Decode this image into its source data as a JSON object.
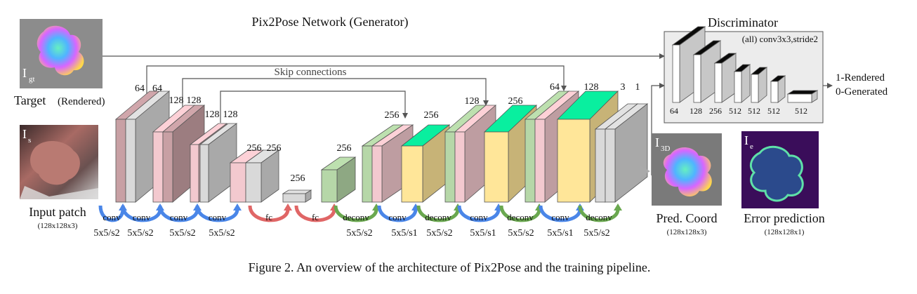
{
  "titles": {
    "generator": "Pix2Pose Network (Generator)",
    "discriminator": "Discriminator",
    "skip": "Skip connections",
    "disc_note": "(all) conv3x3,stride2"
  },
  "images": {
    "target_sym": "I",
    "target_sub": "gt",
    "target_caption": "Target",
    "target_caption_note": "(Rendered)",
    "input_sym": "I",
    "input_sub": "s",
    "input_caption": "Input patch",
    "input_size": "(128x128x3)",
    "pred_sym": "I",
    "pred_sub": "3D",
    "pred_caption": "Pred. Coord",
    "pred_size": "(128x128x3)",
    "err_sym": "I",
    "err_sub": "e",
    "err_caption": "Error prediction",
    "err_size": "(128x128x1)"
  },
  "disc_output": {
    "line1": "1-Rendered",
    "line2": "0-Generated"
  },
  "disc_channels": [
    "64",
    "128",
    "256",
    "512",
    "512",
    "512",
    "512"
  ],
  "block_labels": [
    "64",
    "64",
    "128",
    "128",
    "128",
    "128",
    "256",
    "256",
    "256",
    "256",
    "256",
    "256",
    "128",
    "256",
    "64",
    "128",
    "3",
    "1"
  ],
  "ops": [
    "conv",
    "conv",
    "conv",
    "conv",
    "fc",
    "fc",
    "deconv",
    "conv",
    "deconv",
    "conv",
    "deconv",
    "conv",
    "deconv"
  ],
  "kernels": [
    "5x5/s2",
    "5x5/s2",
    "5x5/s2",
    "5x5/s2",
    "5x5/s2",
    "5x5/s1",
    "5x5/s2",
    "5x5/s1",
    "5x5/s2",
    "5x5/s1",
    "5x5/s2"
  ],
  "caption": "Figure 2. An overview of the architecture of Pix2Pose and the training pipeline.",
  "colors": {
    "pink": "#f3c9cf",
    "mauve": "#c8a0a4",
    "gray": "#d9d9d9",
    "green": "#b6d7a8",
    "yellow": "#ffe699",
    "blue_arrow": "#4a86e8",
    "red_arrow": "#e06666",
    "green_arrow": "#6aa84f",
    "disc_bg": "#ececec"
  }
}
